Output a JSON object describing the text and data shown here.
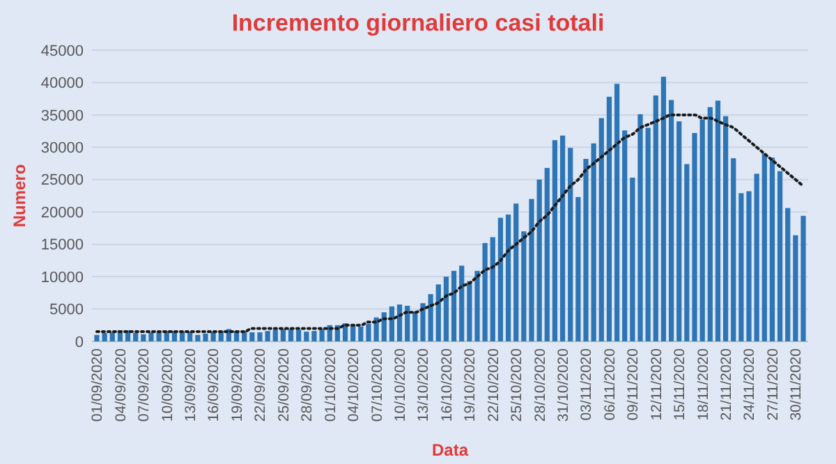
{
  "chart_data": {
    "type": "bar",
    "title": "Incremento giornaliero casi totali",
    "xlabel": "Data",
    "ylabel": "Numero",
    "categories": [
      "01/09/2020",
      null,
      null,
      "04/09/2020",
      null,
      null,
      "07/09/2020",
      null,
      null,
      "10/09/2020",
      null,
      null,
      "13/09/2020",
      null,
      null,
      "16/09/2020",
      null,
      null,
      "19/09/2020",
      null,
      null,
      "22/09/2020",
      null,
      null,
      "25/09/2020",
      null,
      null,
      "28/09/2020",
      null,
      null,
      "01/10/2020",
      null,
      null,
      "04/10/2020",
      null,
      null,
      "07/10/2020",
      null,
      null,
      "10/10/2020",
      null,
      null,
      "13/10/2020",
      null,
      null,
      "16/10/2020",
      null,
      null,
      "19/10/2020",
      null,
      null,
      "22/10/2020",
      null,
      null,
      "25/10/2020",
      null,
      null,
      "28/10/2020",
      null,
      null,
      "31/10/2020",
      null,
      null,
      "03/11/2020",
      null,
      null,
      "06/11/2020",
      null,
      null,
      "09/11/2020",
      null,
      null,
      "12/11/2020",
      null,
      null,
      "15/11/2020",
      null,
      null,
      "18/11/2020",
      null,
      null,
      "21/11/2020",
      null,
      null,
      "24/11/2020",
      null,
      null,
      "27/11/2020",
      null,
      null,
      "30/11/2020",
      null
    ],
    "series": [
      {
        "color": "#2e75b6",
        "values": [
          1000,
          1300,
          1400,
          1700,
          1700,
          1300,
          1100,
          1400,
          1400,
          1600,
          1600,
          1500,
          1500,
          1000,
          1200,
          1500,
          1600,
          1900,
          1600,
          1600,
          1400,
          1400,
          1600,
          1800,
          1900,
          1900,
          1800,
          1500,
          1600,
          1900,
          2500,
          2500,
          2800,
          2600,
          2300,
          2700,
          3700,
          4500,
          5400,
          5700,
          5500,
          4600,
          5900,
          7300,
          8800,
          10000,
          10900,
          11700,
          9300,
          10900,
          15200,
          16100,
          19100,
          19600,
          21300,
          17000,
          22000,
          25000,
          26800,
          31100,
          31800,
          29900,
          22300,
          28200,
          30600,
          34500,
          37800,
          39800,
          32600,
          25300,
          35100,
          33000,
          38000,
          40900,
          37300,
          34000,
          27400,
          32200,
          34300,
          36200,
          37200,
          34800,
          28300,
          22900,
          23200,
          25900,
          29000,
          28400,
          26300,
          20600,
          16400,
          19400
        ]
      },
      {
        "type": "line",
        "color": "#1a1a1a",
        "line_style": "dotted",
        "marker": "none",
        "values": [
          1500,
          1500,
          1500,
          1500,
          1500,
          1500,
          1500,
          1500,
          1500,
          1500,
          1500,
          1500,
          1500,
          1500,
          1500,
          1500,
          1500,
          1500,
          1500,
          1500,
          2000,
          2000,
          2000,
          2000,
          2000,
          2000,
          2000,
          2000,
          2000,
          2000,
          2000,
          2000,
          2500,
          2500,
          2500,
          3000,
          3000,
          3500,
          3500,
          4000,
          4500,
          4500,
          5000,
          5500,
          6000,
          7000,
          7500,
          8500,
          9000,
          10000,
          11000,
          11500,
          12500,
          14000,
          15000,
          16000,
          17000,
          18500,
          19500,
          21000,
          22500,
          24000,
          25000,
          26500,
          27500,
          28500,
          29500,
          30500,
          31500,
          32000,
          33000,
          33500,
          34000,
          34500,
          35000,
          35000,
          35000,
          35000,
          34500,
          34500,
          34000,
          33500,
          33000,
          32000,
          31000,
          30000,
          29000,
          28000,
          27000,
          26000,
          25000,
          24000
        ]
      }
    ],
    "ylim": [
      0,
      45000
    ],
    "yticks": [
      0,
      5000,
      10000,
      15000,
      20000,
      25000,
      30000,
      35000,
      40000,
      45000
    ],
    "grid": "y"
  }
}
